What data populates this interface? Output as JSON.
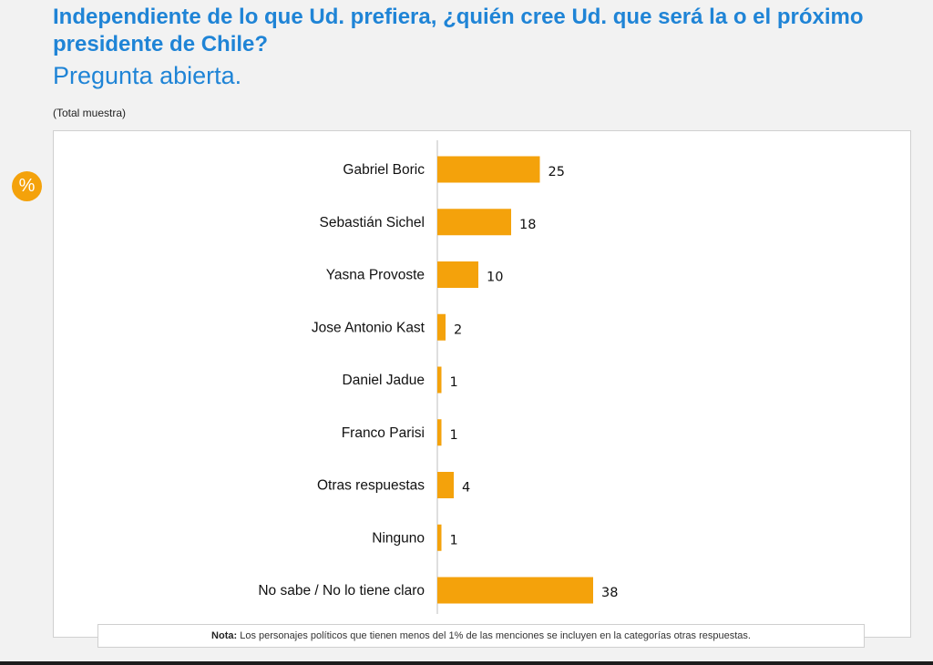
{
  "header": {
    "title": "Independiente de lo que Ud. prefiera, ¿quién cree Ud. que será la o el próximo presidente de Chile?",
    "subtitle": "Pregunta abierta.",
    "sample": "(Total muestra)",
    "unit_badge": "%"
  },
  "colors": {
    "title": "#1f84d6",
    "bar": "#f4a20b",
    "badge": "#f4a20b"
  },
  "chart_data": {
    "type": "bar",
    "orientation": "horizontal",
    "categories": [
      "Gabriel Boric",
      "Sebastián Sichel",
      "Yasna Provoste",
      "Jose Antonio Kast",
      "Daniel Jadue",
      "Franco Parisi",
      "Otras respuestas",
      "Ninguno",
      "No sabe / No lo tiene claro"
    ],
    "values": [
      25,
      18,
      10,
      2,
      1,
      1,
      4,
      1,
      38
    ],
    "title": "",
    "xlabel": "",
    "ylabel": "",
    "xlim": [
      0,
      100
    ],
    "grid": false,
    "legend": "none",
    "data_labels": true
  },
  "footer": {
    "note_label": "Nota:",
    "note_text": "Los personajes políticos que tienen menos del 1% de las menciones se incluyen en la categorías otras respuestas."
  }
}
